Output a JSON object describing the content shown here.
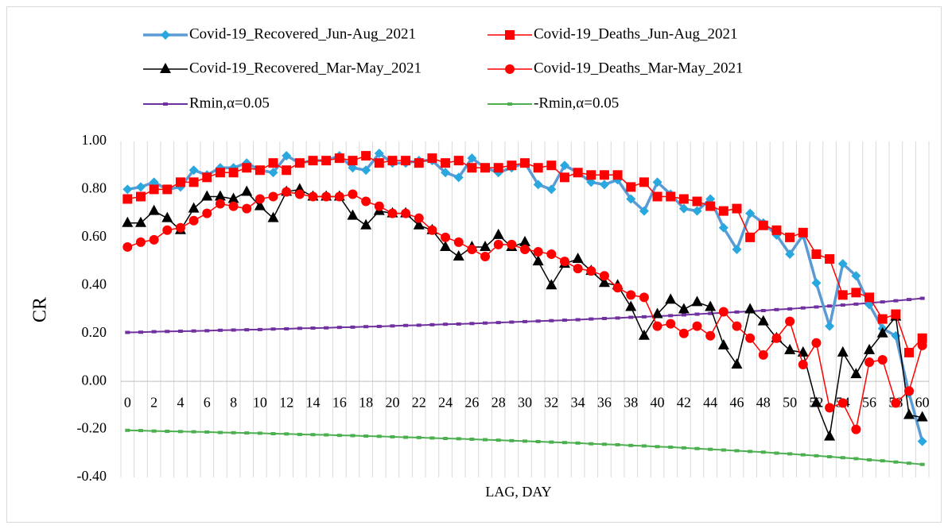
{
  "chart_data": {
    "type": "line",
    "categories": [
      0,
      null,
      2,
      null,
      4,
      null,
      6,
      null,
      8,
      null,
      10,
      null,
      12,
      null,
      14,
      null,
      16,
      null,
      18,
      null,
      20,
      null,
      22,
      null,
      24,
      null,
      26,
      null,
      28,
      null,
      30,
      null,
      32,
      null,
      34,
      null,
      36,
      null,
      38,
      null,
      40,
      null,
      42,
      null,
      44,
      null,
      46,
      null,
      48,
      null,
      50,
      null,
      52,
      null,
      54,
      null,
      56,
      null,
      58,
      null,
      60
    ],
    "x_label": "LAG, DAY",
    "y_label": "CR",
    "ylim": [
      -0.4,
      1.0
    ],
    "yticks": [
      {
        "value": -0.4,
        "label": "-0.40"
      },
      {
        "value": -0.2,
        "label": "-0.20"
      },
      {
        "value": 0,
        "label": "0.00"
      },
      {
        "value": 0.2,
        "label": "0.20"
      },
      {
        "value": 0.4,
        "label": "0.40"
      },
      {
        "value": 0.6,
        "label": "0.60"
      },
      {
        "value": 0.8,
        "label": "0.80"
      },
      {
        "value": 1.0,
        "label": "1.00"
      }
    ],
    "grid": false,
    "xgrid": true,
    "legend": "top",
    "series": [
      {
        "name": "Covid-19_Recovered_Jun-Aug_2021",
        "color": "#5b9bd5",
        "marker_color": "#29a8e0",
        "marker": "diamond",
        "line_width": 3.5,
        "values": [
          0.8,
          0.81,
          0.83,
          0.8,
          0.81,
          0.88,
          0.86,
          0.89,
          0.89,
          0.91,
          0.88,
          0.87,
          0.94,
          0.91,
          0.92,
          0.92,
          0.94,
          0.89,
          0.88,
          0.95,
          0.91,
          0.91,
          0.92,
          0.92,
          0.87,
          0.85,
          0.93,
          0.89,
          0.87,
          0.89,
          0.91,
          0.82,
          0.8,
          0.9,
          0.87,
          0.83,
          0.82,
          0.84,
          0.76,
          0.71,
          0.83,
          0.78,
          0.72,
          0.71,
          0.76,
          0.64,
          0.55,
          0.7,
          0.66,
          0.61,
          0.53,
          0.61,
          0.41,
          0.23,
          0.49,
          0.44,
          0.32,
          0.22,
          0.19,
          -0.05,
          -0.25
        ]
      },
      {
        "name": "Covid-19_Deaths_Jun-Aug_2021",
        "color": "#ff0000",
        "marker_color": "#ff0000",
        "marker": "square",
        "line_width": 1.5,
        "values": [
          0.76,
          0.77,
          0.8,
          0.8,
          0.83,
          0.83,
          0.85,
          0.87,
          0.87,
          0.89,
          0.88,
          0.91,
          0.88,
          0.91,
          0.92,
          0.92,
          0.93,
          0.92,
          0.94,
          0.91,
          0.92,
          0.92,
          0.91,
          0.93,
          0.91,
          0.92,
          0.89,
          0.89,
          0.89,
          0.9,
          0.91,
          0.89,
          0.9,
          0.85,
          0.87,
          0.86,
          0.86,
          0.86,
          0.81,
          0.83,
          0.77,
          0.77,
          0.76,
          0.75,
          0.73,
          0.71,
          0.72,
          0.6,
          0.65,
          0.63,
          0.6,
          0.62,
          0.53,
          0.51,
          0.36,
          0.37,
          0.35,
          0.26,
          0.28,
          0.12,
          0.18
        ]
      },
      {
        "name": "Covid-19_Recovered_Mar-May_2021",
        "color": "#000000",
        "marker_color": "#000000",
        "marker": "triangle",
        "line_width": 1.5,
        "values": [
          0.66,
          0.66,
          0.71,
          0.68,
          0.63,
          0.72,
          0.77,
          0.77,
          0.76,
          0.79,
          0.73,
          0.68,
          0.79,
          0.8,
          0.77,
          0.77,
          0.77,
          0.69,
          0.65,
          0.71,
          0.7,
          0.7,
          0.65,
          0.63,
          0.56,
          0.52,
          0.56,
          0.56,
          0.61,
          0.56,
          0.58,
          0.5,
          0.4,
          0.49,
          0.51,
          0.46,
          0.41,
          0.4,
          0.31,
          0.19,
          0.28,
          0.34,
          0.3,
          0.33,
          0.31,
          0.15,
          0.07,
          0.3,
          0.25,
          0.18,
          0.13,
          0.12,
          -0.09,
          -0.23,
          0.12,
          0.03,
          0.13,
          0.2,
          0.27,
          -0.14,
          -0.15
        ]
      },
      {
        "name": "Covid-19_Deaths_Mar-May_2021",
        "color": "#ff0000",
        "marker_color": "#ff0000",
        "marker": "circle",
        "line_width": 1.5,
        "values": [
          0.56,
          0.58,
          0.59,
          0.63,
          0.64,
          0.67,
          0.7,
          0.74,
          0.73,
          0.72,
          0.76,
          0.77,
          0.79,
          0.78,
          0.77,
          0.77,
          0.77,
          0.78,
          0.75,
          0.73,
          0.7,
          0.7,
          0.68,
          0.63,
          0.6,
          0.58,
          0.55,
          0.52,
          0.57,
          0.57,
          0.55,
          0.54,
          0.53,
          0.5,
          0.47,
          0.46,
          0.44,
          0.39,
          0.36,
          0.35,
          0.23,
          0.24,
          0.2,
          0.23,
          0.19,
          0.29,
          0.23,
          0.18,
          0.11,
          0.18,
          0.25,
          0.07,
          0.16,
          -0.11,
          -0.09,
          -0.2,
          0.08,
          0.09,
          -0.09,
          -0.04,
          0.15
        ]
      },
      {
        "name": "Rmin,α=0.05",
        "color": "#7030a0",
        "marker_color": "#7030a0",
        "marker": "dash",
        "line_width": 2,
        "values": [
          0.204,
          0.205,
          0.207,
          0.208,
          0.209,
          0.21,
          0.211,
          0.213,
          0.214,
          0.215,
          0.216,
          0.218,
          0.219,
          0.221,
          0.222,
          0.223,
          0.225,
          0.226,
          0.228,
          0.229,
          0.231,
          0.233,
          0.234,
          0.236,
          0.238,
          0.239,
          0.241,
          0.243,
          0.245,
          0.247,
          0.249,
          0.251,
          0.253,
          0.255,
          0.257,
          0.26,
          0.262,
          0.264,
          0.267,
          0.269,
          0.272,
          0.274,
          0.277,
          0.28,
          0.283,
          0.286,
          0.289,
          0.292,
          0.295,
          0.299,
          0.302,
          0.306,
          0.31,
          0.314,
          0.318,
          0.322,
          0.327,
          0.331,
          0.336,
          0.341,
          0.346
        ]
      },
      {
        "name": "-Rmin,α=0.05",
        "color": "#4caf50",
        "marker_color": "#4caf50",
        "marker": "dash",
        "line_width": 2,
        "values": [
          -0.204,
          -0.205,
          -0.207,
          -0.208,
          -0.209,
          -0.21,
          -0.211,
          -0.213,
          -0.214,
          -0.215,
          -0.216,
          -0.218,
          -0.219,
          -0.221,
          -0.222,
          -0.223,
          -0.225,
          -0.226,
          -0.228,
          -0.229,
          -0.231,
          -0.233,
          -0.234,
          -0.236,
          -0.238,
          -0.239,
          -0.241,
          -0.243,
          -0.245,
          -0.247,
          -0.249,
          -0.251,
          -0.253,
          -0.255,
          -0.257,
          -0.26,
          -0.262,
          -0.264,
          -0.267,
          -0.269,
          -0.272,
          -0.274,
          -0.277,
          -0.28,
          -0.283,
          -0.286,
          -0.289,
          -0.292,
          -0.295,
          -0.299,
          -0.302,
          -0.306,
          -0.31,
          -0.314,
          -0.318,
          -0.322,
          -0.327,
          -0.331,
          -0.336,
          -0.341,
          -0.346
        ]
      }
    ]
  }
}
